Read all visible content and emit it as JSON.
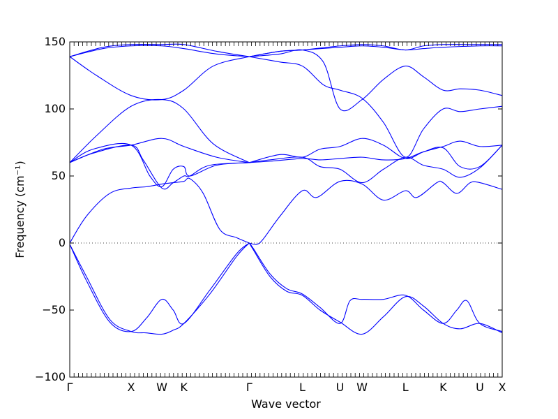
{
  "chart_data": {
    "type": "line",
    "xlabel": "Wave vector",
    "ylabel": "Frequency (cm⁻¹)",
    "ylim": [
      -100,
      150
    ],
    "xlim": [
      0,
      12.96
    ],
    "yticks": [
      -100,
      -50,
      0,
      50,
      100,
      150
    ],
    "grid": false,
    "zero_line": true,
    "line_color": "#0000ff",
    "x_ticks": [
      {
        "label": "Γ",
        "x": 0
      },
      {
        "label": "X",
        "x": 1.84
      },
      {
        "label": "W",
        "x": 2.76
      },
      {
        "label": "K",
        "x": 3.42
      },
      {
        "label": "Γ",
        "x": 5.38
      },
      {
        "label": "L",
        "x": 6.97
      },
      {
        "label": "U",
        "x": 8.1
      },
      {
        "label": "W",
        "x": 8.76
      },
      {
        "label": "L",
        "x": 10.06
      },
      {
        "label": "K",
        "x": 11.19
      },
      {
        "label": "U",
        "x": 12.29
      },
      {
        "label": "X",
        "x": 12.96
      }
    ],
    "series": [
      {
        "points": [
          [
            0,
            -1
          ],
          [
            0.5,
            -25
          ],
          [
            1.2,
            -57
          ],
          [
            1.84,
            -66
          ],
          [
            2.3,
            -67
          ],
          [
            2.76,
            -68
          ],
          [
            3.1,
            -65
          ],
          [
            3.42,
            -60
          ],
          [
            4.2,
            -38
          ],
          [
            5.0,
            -10
          ],
          [
            5.38,
            0
          ]
        ]
      },
      {
        "points": [
          [
            0,
            -1
          ],
          [
            0.5,
            -28
          ],
          [
            1.2,
            -59
          ],
          [
            1.84,
            -66
          ],
          [
            2.3,
            -56
          ],
          [
            2.76,
            -42
          ],
          [
            3.1,
            -50
          ],
          [
            3.42,
            -60
          ],
          [
            4.2,
            -35
          ],
          [
            5.0,
            -8
          ],
          [
            5.38,
            0
          ]
        ]
      },
      {
        "points": [
          [
            0,
            0
          ],
          [
            0.5,
            20
          ],
          [
            1.2,
            37
          ],
          [
            1.84,
            41
          ],
          [
            2.3,
            42
          ],
          [
            2.76,
            44
          ],
          [
            3.1,
            45
          ],
          [
            3.42,
            46
          ],
          [
            3.6,
            48
          ],
          [
            4.0,
            37
          ],
          [
            4.5,
            10
          ],
          [
            5.0,
            4
          ],
          [
            5.38,
            0
          ]
        ]
      },
      {
        "points": [
          [
            0,
            60
          ],
          [
            0.7,
            67
          ],
          [
            1.84,
            73
          ],
          [
            2.2,
            62
          ],
          [
            2.76,
            41
          ],
          [
            3.1,
            45
          ],
          [
            3.42,
            50
          ],
          [
            3.6,
            50
          ],
          [
            4.2,
            58
          ],
          [
            5.38,
            60
          ]
        ]
      },
      {
        "points": [
          [
            0,
            60
          ],
          [
            1.0,
            70
          ],
          [
            1.84,
            73
          ],
          [
            2.76,
            78
          ],
          [
            3.42,
            72
          ],
          [
            4.4,
            64
          ],
          [
            5.38,
            60
          ]
        ]
      },
      {
        "points": [
          [
            0,
            60
          ],
          [
            0.7,
            70
          ],
          [
            1.84,
            73
          ],
          [
            2.4,
            50
          ],
          [
            2.76,
            42
          ],
          [
            3.1,
            55
          ],
          [
            3.42,
            57
          ],
          [
            3.6,
            50
          ],
          [
            4.4,
            58
          ],
          [
            5.38,
            60
          ]
        ]
      },
      {
        "points": [
          [
            0,
            60
          ],
          [
            0.8,
            80
          ],
          [
            1.84,
            102
          ],
          [
            2.76,
            107
          ],
          [
            3.42,
            100
          ],
          [
            4.3,
            74
          ],
          [
            5.38,
            60
          ]
        ]
      },
      {
        "points": [
          [
            0,
            139
          ],
          [
            0.8,
            125
          ],
          [
            1.84,
            110
          ],
          [
            2.76,
            107
          ],
          [
            3.42,
            114
          ],
          [
            4.3,
            132
          ],
          [
            5.38,
            139
          ]
        ]
      },
      {
        "points": [
          [
            0,
            139
          ],
          [
            1.0,
            145
          ],
          [
            1.84,
            147
          ],
          [
            2.76,
            147
          ],
          [
            3.42,
            145
          ],
          [
            4.4,
            141
          ],
          [
            5.38,
            139
          ]
        ]
      },
      {
        "points": [
          [
            0,
            139
          ],
          [
            1.0,
            146
          ],
          [
            1.84,
            148
          ],
          [
            2.76,
            148
          ],
          [
            3.42,
            148
          ],
          [
            4.4,
            143
          ],
          [
            5.38,
            139
          ]
        ]
      },
      {
        "points": [
          [
            5.38,
            0
          ],
          [
            5.5,
            -4
          ],
          [
            6.0,
            -23
          ],
          [
            6.5,
            -34
          ],
          [
            6.97,
            -38
          ],
          [
            7.5,
            -48
          ],
          [
            8.1,
            -60
          ],
          [
            8.4,
            -43
          ],
          [
            8.76,
            -42
          ],
          [
            9.4,
            -42
          ],
          [
            10.06,
            -39
          ],
          [
            10.6,
            -50
          ],
          [
            11.19,
            -60
          ],
          [
            11.6,
            -50
          ],
          [
            11.9,
            -43
          ],
          [
            12.29,
            -60
          ],
          [
            12.96,
            -66
          ]
        ]
      },
      {
        "points": [
          [
            5.38,
            0
          ],
          [
            5.5,
            -5
          ],
          [
            6.0,
            -25
          ],
          [
            6.5,
            -36
          ],
          [
            6.97,
            -39
          ],
          [
            7.5,
            -50
          ],
          [
            8.1,
            -59
          ],
          [
            8.76,
            -68
          ],
          [
            9.4,
            -55
          ],
          [
            10.06,
            -40
          ],
          [
            10.6,
            -47
          ],
          [
            11.19,
            -60
          ],
          [
            11.7,
            -64
          ],
          [
            12.29,
            -60
          ],
          [
            12.96,
            -67
          ]
        ]
      },
      {
        "points": [
          [
            5.38,
            0
          ],
          [
            5.6,
            -1
          ],
          [
            5.8,
            3
          ],
          [
            6.3,
            20
          ],
          [
            6.97,
            39
          ],
          [
            7.4,
            34
          ],
          [
            8.1,
            46
          ],
          [
            8.76,
            44
          ],
          [
            9.4,
            32
          ],
          [
            10.06,
            39
          ],
          [
            10.4,
            34
          ],
          [
            11.0,
            45
          ],
          [
            11.19,
            45
          ],
          [
            11.6,
            37
          ],
          [
            12.0,
            45
          ],
          [
            12.29,
            45
          ],
          [
            12.96,
            40
          ]
        ]
      },
      {
        "points": [
          [
            5.38,
            60
          ],
          [
            6.0,
            61
          ],
          [
            6.97,
            63
          ],
          [
            7.5,
            62
          ],
          [
            8.1,
            63
          ],
          [
            8.76,
            64
          ],
          [
            9.4,
            62
          ],
          [
            10.06,
            63
          ],
          [
            10.6,
            68
          ],
          [
            11.19,
            71
          ],
          [
            11.7,
            57
          ],
          [
            12.29,
            57
          ],
          [
            12.96,
            73
          ]
        ]
      },
      {
        "points": [
          [
            5.38,
            60
          ],
          [
            6.0,
            62
          ],
          [
            6.97,
            64
          ],
          [
            7.5,
            57
          ],
          [
            8.1,
            55
          ],
          [
            8.76,
            45
          ],
          [
            9.4,
            55
          ],
          [
            10.06,
            64
          ],
          [
            10.6,
            58
          ],
          [
            11.19,
            55
          ],
          [
            11.7,
            49
          ],
          [
            12.29,
            56
          ],
          [
            12.96,
            73
          ]
        ]
      },
      {
        "points": [
          [
            5.38,
            60
          ],
          [
            6.3,
            66
          ],
          [
            6.97,
            64
          ],
          [
            7.5,
            70
          ],
          [
            8.1,
            72
          ],
          [
            8.76,
            78
          ],
          [
            9.4,
            73
          ],
          [
            10.06,
            63
          ],
          [
            10.6,
            68
          ],
          [
            11.19,
            72
          ],
          [
            11.7,
            76
          ],
          [
            12.29,
            72
          ],
          [
            12.96,
            73
          ]
        ]
      },
      {
        "points": [
          [
            5.38,
            139
          ],
          [
            6.3,
            135
          ],
          [
            6.97,
            132
          ],
          [
            7.6,
            118
          ],
          [
            8.1,
            114
          ],
          [
            8.76,
            108
          ],
          [
            9.4,
            90
          ],
          [
            10.06,
            64
          ],
          [
            10.6,
            85
          ],
          [
            11.19,
            100
          ],
          [
            11.7,
            98
          ],
          [
            12.29,
            100
          ],
          [
            12.96,
            102
          ]
        ]
      },
      {
        "points": [
          [
            5.38,
            139
          ],
          [
            6.3,
            141
          ],
          [
            6.97,
            144
          ],
          [
            7.6,
            135
          ],
          [
            8.1,
            100
          ],
          [
            8.76,
            107
          ],
          [
            9.4,
            122
          ],
          [
            10.06,
            132
          ],
          [
            10.6,
            124
          ],
          [
            11.19,
            114
          ],
          [
            11.7,
            115
          ],
          [
            12.29,
            114
          ],
          [
            12.96,
            110
          ]
        ]
      },
      {
        "points": [
          [
            5.38,
            139
          ],
          [
            6.3,
            143
          ],
          [
            6.97,
            144
          ],
          [
            8.1,
            147
          ],
          [
            8.76,
            148
          ],
          [
            9.4,
            147
          ],
          [
            10.06,
            144
          ],
          [
            10.6,
            147
          ],
          [
            11.19,
            148
          ],
          [
            12.29,
            148
          ],
          [
            12.96,
            148
          ]
        ]
      },
      {
        "points": [
          [
            5.38,
            139
          ],
          [
            6.3,
            143
          ],
          [
            6.97,
            144
          ],
          [
            8.1,
            146
          ],
          [
            8.76,
            147
          ],
          [
            9.4,
            146
          ],
          [
            10.06,
            144
          ],
          [
            10.6,
            145
          ],
          [
            11.19,
            146
          ],
          [
            12.29,
            147
          ],
          [
            12.96,
            147
          ]
        ]
      }
    ]
  }
}
